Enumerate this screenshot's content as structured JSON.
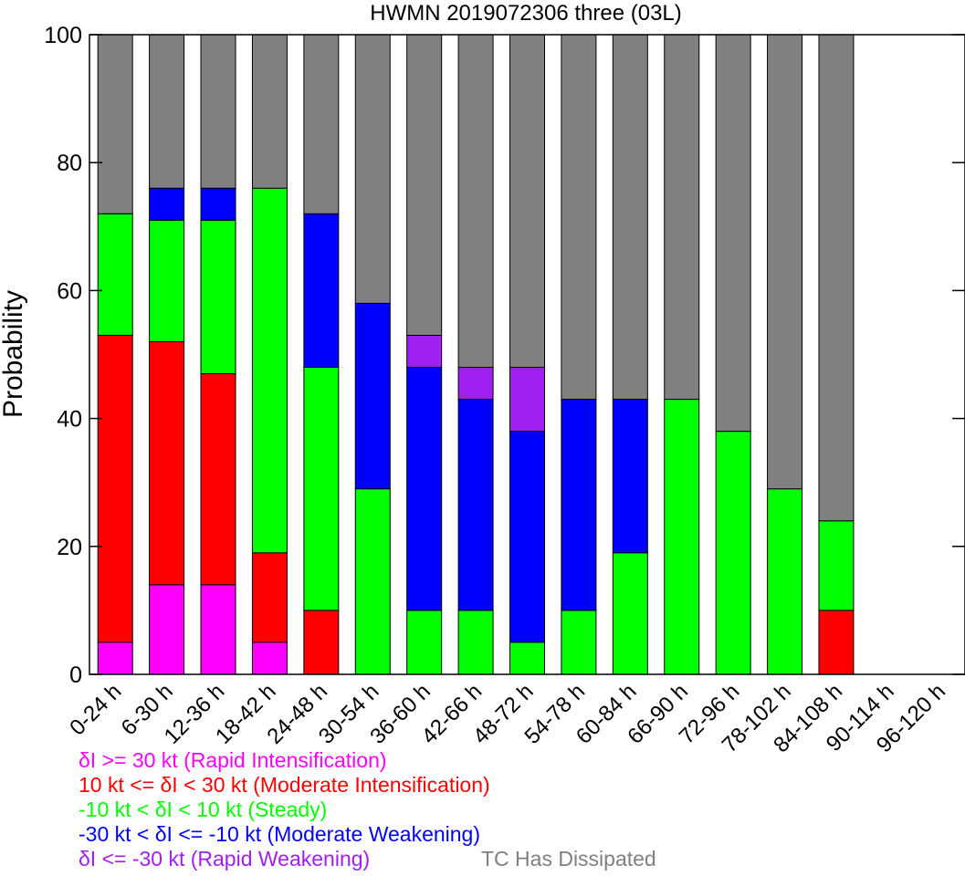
{
  "chart_data": {
    "type": "bar",
    "stacked": true,
    "title": "HWMN 2019072306 three (03L)",
    "ylabel": "Probability",
    "xlabel": "",
    "ylim": [
      0,
      100
    ],
    "yticks": [
      0,
      20,
      40,
      60,
      80,
      100
    ],
    "categories": [
      "0-24 h",
      "6-30 h",
      "12-36 h",
      "18-42 h",
      "24-48 h",
      "30-54 h",
      "36-60 h",
      "42-66 h",
      "48-72 h",
      "54-78 h",
      "60-84 h",
      "66-90 h",
      "72-96 h",
      "78-102 h",
      "84-108 h",
      "90-114 h",
      "96-120 h"
    ],
    "series": [
      {
        "name": "δI >= 30 kt (Rapid Intensification)",
        "color": "#ff00ff",
        "values": [
          5,
          14,
          14,
          5,
          0,
          0,
          0,
          0,
          0,
          0,
          0,
          0,
          0,
          0,
          0,
          0,
          0
        ]
      },
      {
        "name": "10 kt <= δI < 30 kt (Moderate Intensification)",
        "color": "#ff0000",
        "values": [
          48,
          38,
          33,
          14,
          10,
          0,
          0,
          0,
          0,
          0,
          0,
          0,
          0,
          0,
          10,
          0,
          0
        ]
      },
      {
        "name": "-10 kt < δI < 10 kt (Steady)",
        "color": "#00ff00",
        "values": [
          19,
          19,
          24,
          57,
          38,
          29,
          10,
          10,
          5,
          10,
          19,
          43,
          38,
          29,
          14,
          0,
          0
        ]
      },
      {
        "name": "-30 kt < δI <= -10 kt (Moderate Weakening)",
        "color": "#0000ff",
        "values": [
          0,
          5,
          5,
          0,
          24,
          29,
          38,
          33,
          33,
          33,
          24,
          0,
          0,
          0,
          0,
          0,
          0
        ]
      },
      {
        "name": "δI <= -30 kt (Rapid Weakening)",
        "color": "#a020f0",
        "values": [
          0,
          0,
          0,
          0,
          0,
          0,
          5,
          5,
          10,
          0,
          0,
          0,
          0,
          0,
          0,
          0,
          0
        ]
      },
      {
        "name": "TC Has Dissipated",
        "color": "#808080",
        "values": [
          28,
          24,
          24,
          24,
          28,
          42,
          47,
          52,
          52,
          57,
          57,
          57,
          62,
          71,
          76,
          0,
          0
        ]
      }
    ],
    "grid": false,
    "legend_position": "bottom"
  }
}
